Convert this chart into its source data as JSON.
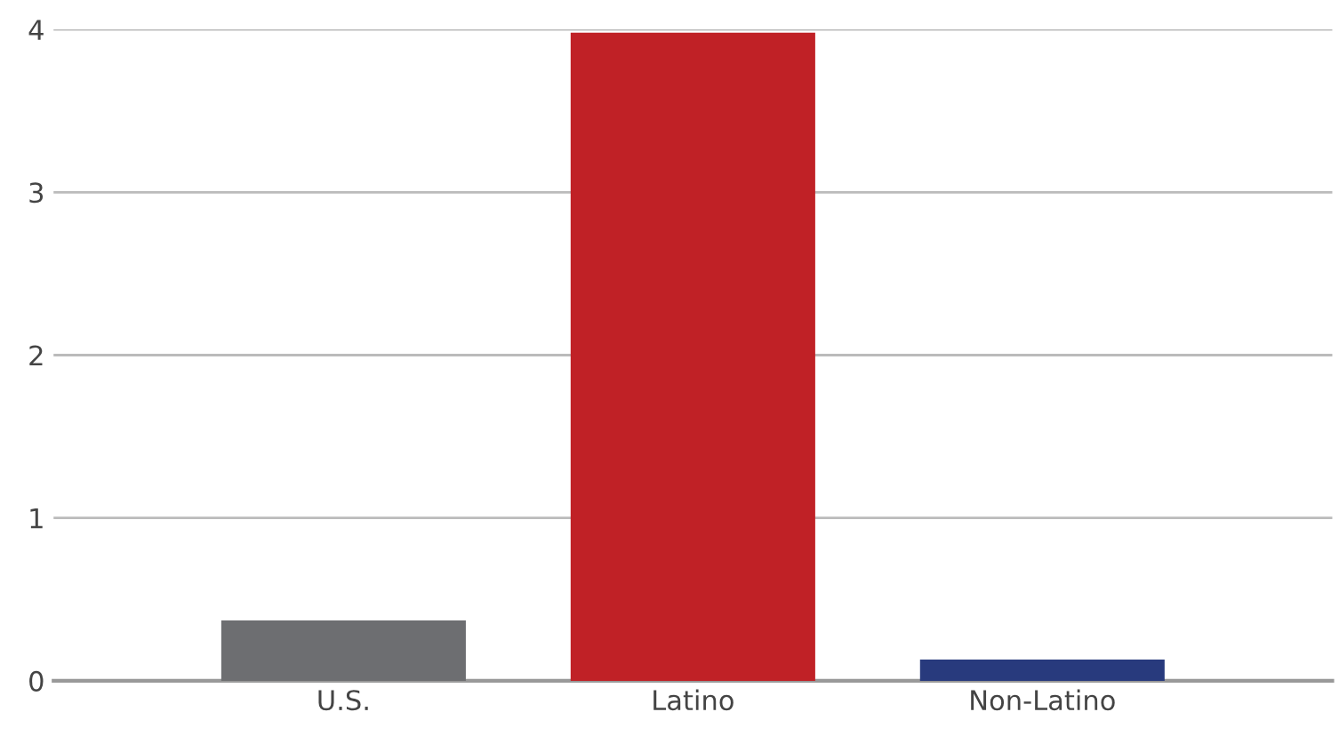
{
  "chart_data": {
    "type": "bar",
    "categories": [
      "U.S.",
      "Latino",
      "Non-Latino"
    ],
    "values": [
      0.37,
      3.98,
      0.13
    ],
    "colors": [
      "#6d6e71",
      "#c02126",
      "#283a7d"
    ],
    "ylim": [
      0,
      4
    ],
    "yticks": [
      0,
      1,
      2,
      3,
      4
    ],
    "grid": "y"
  }
}
